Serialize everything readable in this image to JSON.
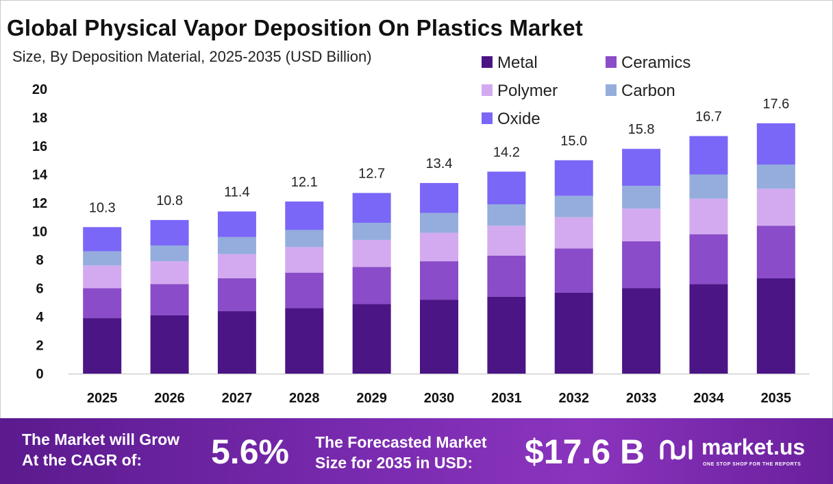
{
  "title": "Global Physical Vapor Deposition On Plastics Market",
  "subtitle": "Size, By Deposition Material, 2025-2035 (USD Billion)",
  "chart_data": {
    "type": "bar",
    "stacked": true,
    "categories": [
      "2025",
      "2026",
      "2027",
      "2028",
      "2029",
      "2030",
      "2031",
      "2032",
      "2033",
      "2034",
      "2035"
    ],
    "series": [
      {
        "name": "Metal",
        "color": "#4b1585",
        "values": [
          3.9,
          4.1,
          4.4,
          4.6,
          4.9,
          5.2,
          5.4,
          5.7,
          6.0,
          6.3,
          6.7
        ]
      },
      {
        "name": "Ceramics",
        "color": "#8a4cc8",
        "values": [
          2.1,
          2.2,
          2.3,
          2.5,
          2.6,
          2.7,
          2.9,
          3.1,
          3.3,
          3.5,
          3.7
        ]
      },
      {
        "name": "Polymer",
        "color": "#d3aaef",
        "values": [
          1.6,
          1.6,
          1.7,
          1.8,
          1.9,
          2.0,
          2.1,
          2.2,
          2.3,
          2.5,
          2.6
        ]
      },
      {
        "name": "Carbon",
        "color": "#94addc",
        "values": [
          1.0,
          1.1,
          1.2,
          1.2,
          1.2,
          1.4,
          1.5,
          1.5,
          1.6,
          1.7,
          1.7
        ]
      },
      {
        "name": "Oxide",
        "color": "#7a67f7",
        "values": [
          1.7,
          1.8,
          1.8,
          2.0,
          2.1,
          2.1,
          2.3,
          2.5,
          2.6,
          2.7,
          2.9
        ]
      }
    ],
    "totals": [
      "10.3",
      "10.8",
      "11.4",
      "12.1",
      "12.7",
      "13.4",
      "14.2",
      "15.0",
      "15.8",
      "16.7",
      "17.6"
    ],
    "ylim": [
      0,
      20
    ],
    "yticks": [
      0,
      2,
      4,
      6,
      8,
      10,
      12,
      14,
      16,
      18,
      20
    ],
    "legend_position": "top-right",
    "grid": false
  },
  "footer": {
    "cagr_label_1": "The Market will Grow",
    "cagr_label_2": "At the CAGR of:",
    "cagr_value": "5.6%",
    "size_label_1": "The Forecasted Market",
    "size_label_2": "Size for 2035 in USD:",
    "size_value": "$17.6 B",
    "brand_name": "market.us",
    "brand_tagline": "ONE STOP SHOP FOR THE REPORTS",
    "background_color": "#7a2bb0"
  }
}
